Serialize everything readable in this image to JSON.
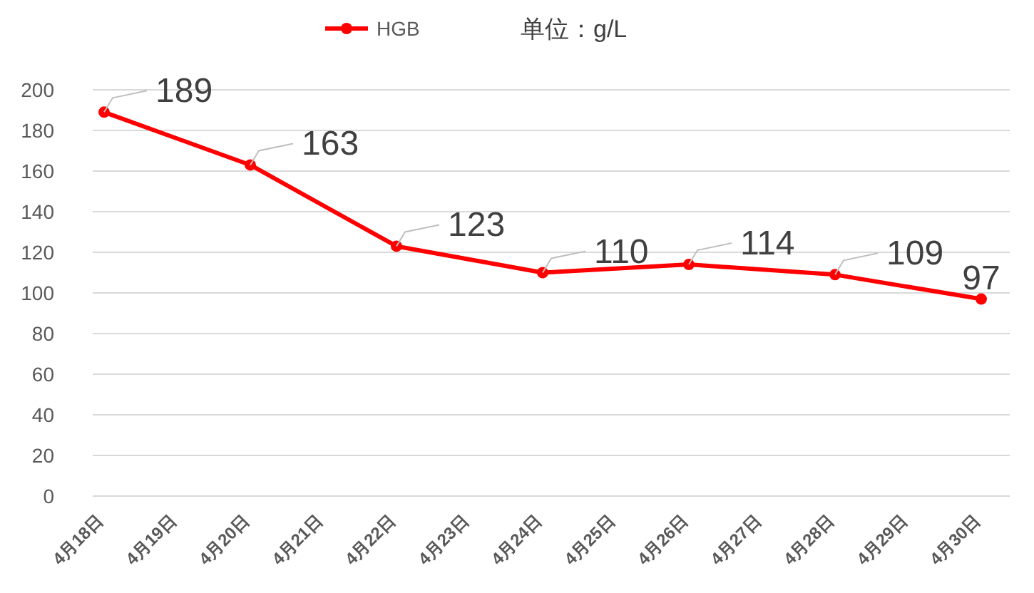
{
  "chart_data": {
    "type": "line",
    "categories": [
      "4月18日",
      "4月19日",
      "4月20日",
      "4月21日",
      "4月22日",
      "4月23日",
      "4月24日",
      "4月25日",
      "4月26日",
      "4月27日",
      "4月28日",
      "4月29日",
      "4月30日"
    ],
    "series": [
      {
        "name": "HGB",
        "color": "#ff0000",
        "values": [
          189,
          null,
          163,
          null,
          123,
          null,
          110,
          null,
          114,
          null,
          109,
          null,
          97
        ]
      }
    ],
    "annotations": [
      "单位：g/L"
    ],
    "ylim": [
      0,
      200
    ],
    "yticks": [
      0,
      20,
      40,
      60,
      80,
      100,
      120,
      140,
      160,
      180,
      200
    ],
    "grid": "y",
    "legend": "top",
    "marker": "circle",
    "line_style": "solid",
    "data_labels": true
  }
}
